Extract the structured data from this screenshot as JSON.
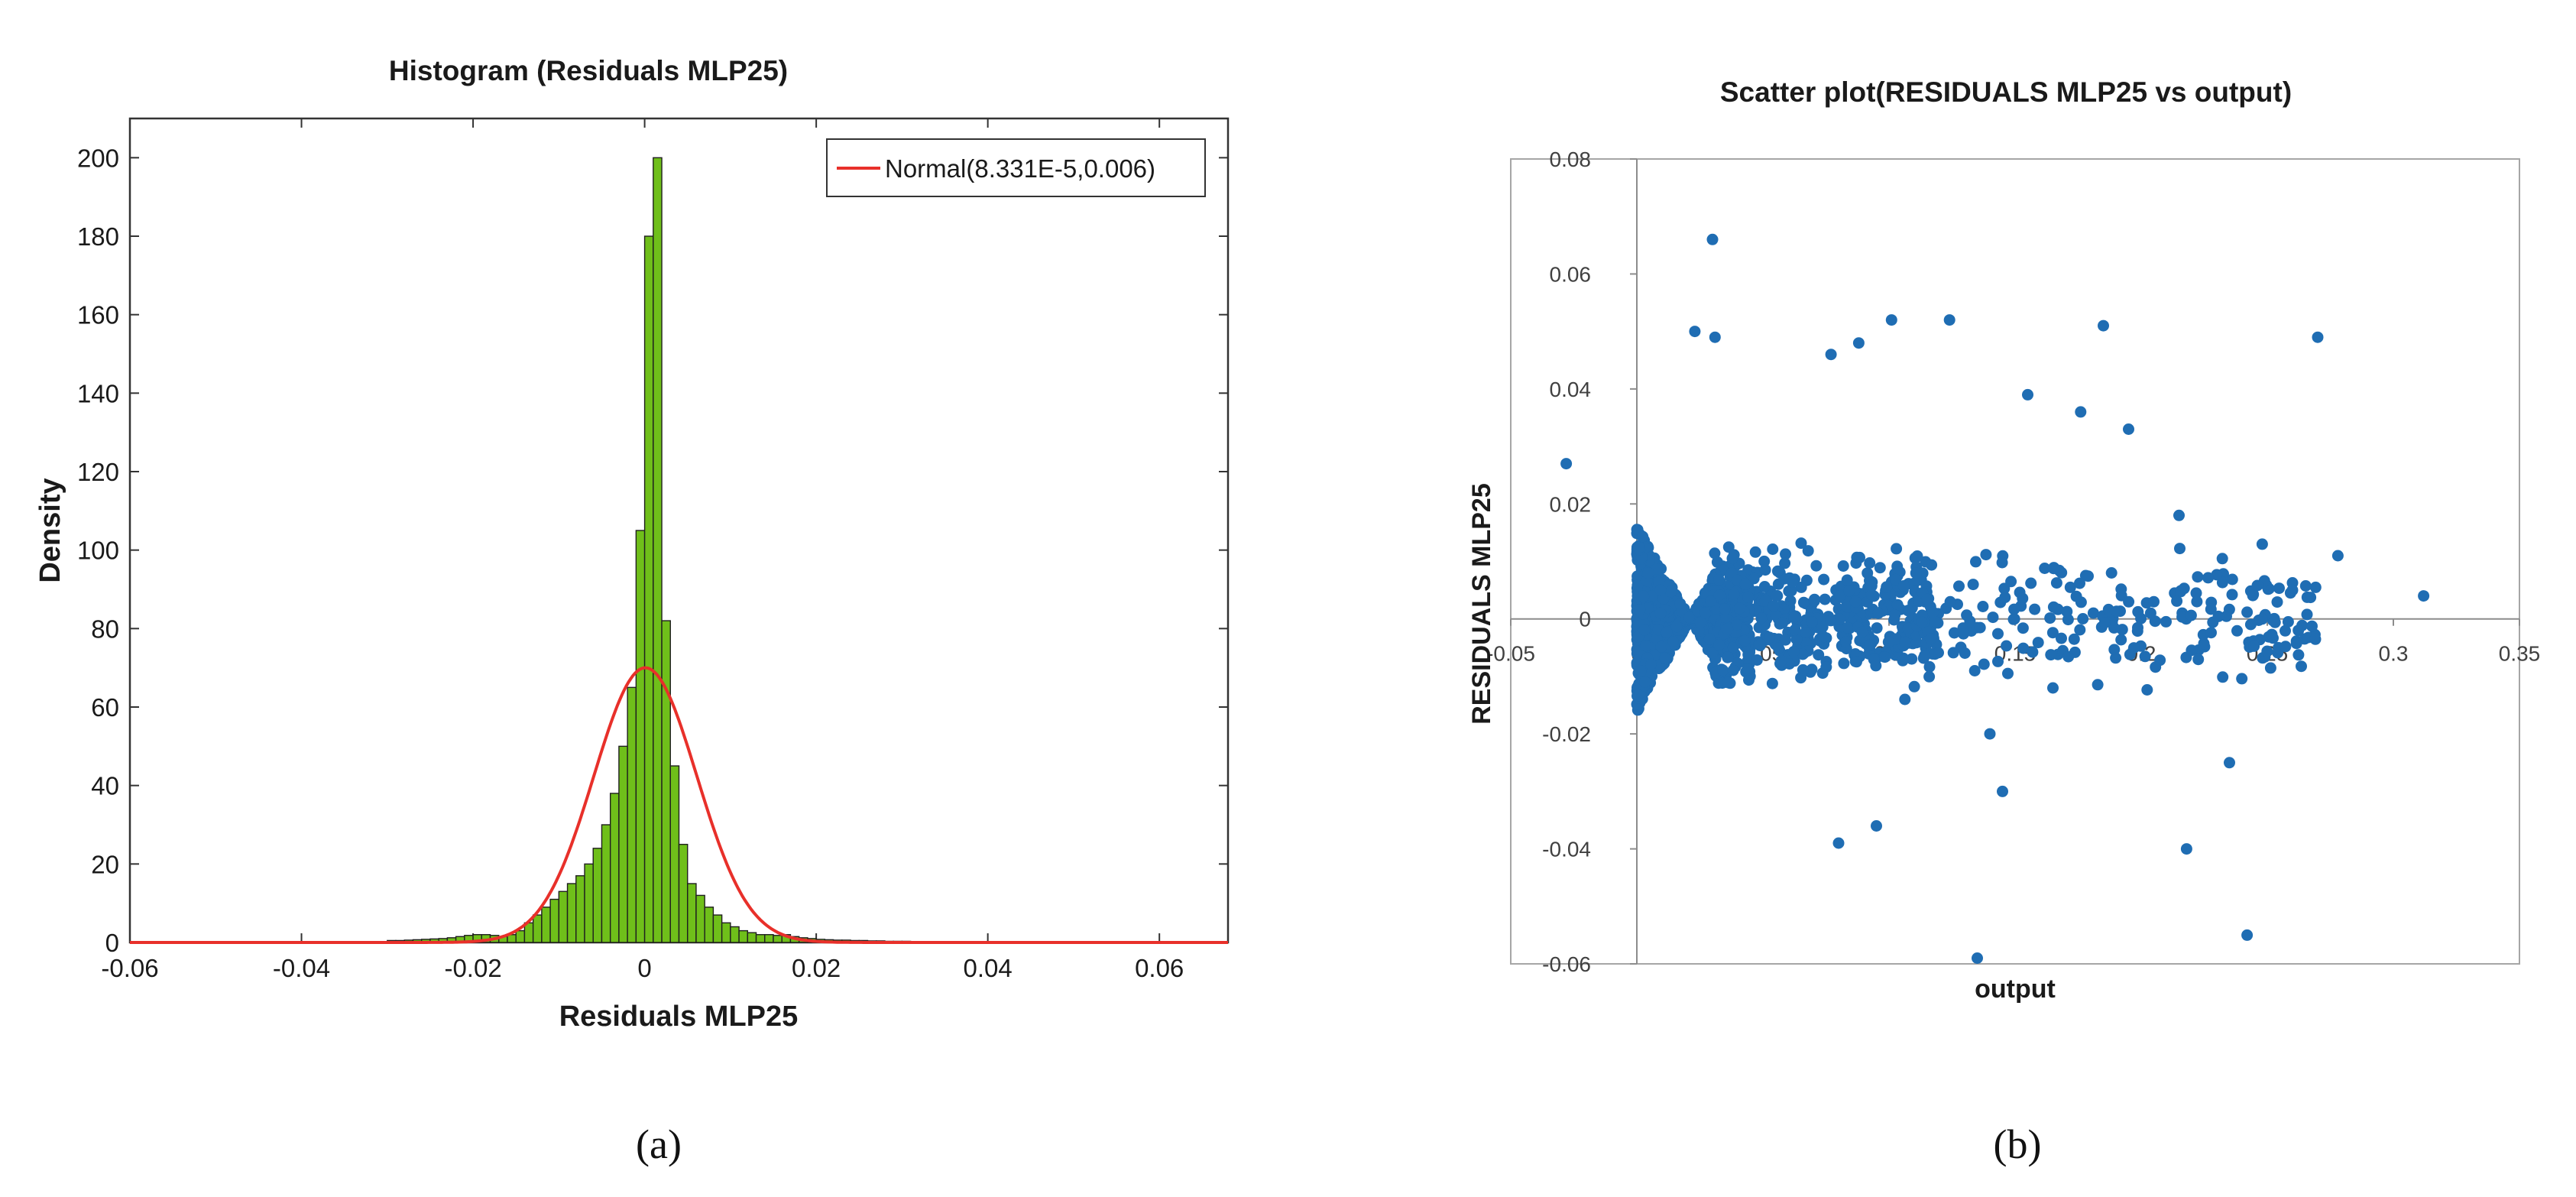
{
  "figure": {
    "panel_a_label": "(a)",
    "panel_b_label": "(b)"
  },
  "colors": {
    "bar_fill": "#6fbf1a",
    "bar_stroke": "#1f1f1f",
    "normal_curve": "#e8302a",
    "scatter_point": "#1f6db3",
    "axis": "#333333",
    "frame": "#a6a6a6"
  },
  "chart_data": [
    {
      "type": "bar",
      "title": "Histogram (Residuals MLP25)",
      "xlabel": "Residuals MLP25",
      "ylabel": "Density",
      "xlim": [
        -0.06,
        0.068
      ],
      "ylim": [
        0,
        210
      ],
      "xticks": [
        -0.06,
        -0.04,
        -0.02,
        0,
        0.02,
        0.04,
        0.06
      ],
      "xtick_labels": [
        "-0.06",
        "-0.04",
        "-0.02",
        "0",
        "0.02",
        "0.04",
        "0.06"
      ],
      "yticks": [
        0,
        20,
        40,
        60,
        80,
        100,
        120,
        140,
        160,
        180,
        200
      ],
      "ytick_labels": [
        "0",
        "20",
        "40",
        "60",
        "80",
        "100",
        "120",
        "140",
        "160",
        "180",
        "200"
      ],
      "legend": {
        "label": "Normal(8.331E-5,0.006)",
        "placement": "top-right"
      },
      "bins": {
        "start": -0.03,
        "width": 0.001,
        "density": [
          0.5,
          0.5,
          0.6,
          0.7,
          0.8,
          0.9,
          1,
          1.2,
          1.5,
          1.8,
          2,
          2,
          1.8,
          1.5,
          2,
          3,
          5,
          7,
          9,
          11,
          13,
          15,
          17,
          20,
          24,
          30,
          38,
          50,
          65,
          105,
          180,
          200,
          82,
          45,
          25,
          15,
          12,
          9,
          7,
          5,
          4,
          3,
          2.5,
          2,
          2,
          1.8,
          2,
          1.5,
          1.2,
          1,
          0.8,
          0.7,
          0.6,
          0.6,
          0.5,
          0.5,
          0.4,
          0.4,
          0.3,
          0.3,
          0.3,
          0.2,
          0.2,
          0.2,
          0.2,
          0.2,
          0.2,
          0.2,
          0.2,
          0.2
        ]
      },
      "normal_fit": {
        "mean": 8.331e-05,
        "std": 0.006,
        "peak_density": 70
      }
    },
    {
      "type": "scatter",
      "title": "Scatter plot(RESIDUALS MLP25 vs output)",
      "xlabel": "output",
      "ylabel": "RESIDUALS MLP25",
      "xlim": [
        -0.05,
        0.35
      ],
      "ylim": [
        -0.06,
        0.08
      ],
      "xticks": [
        -0.05,
        0,
        0.05,
        0.1,
        0.15,
        0.2,
        0.25,
        0.3,
        0.35
      ],
      "xtick_labels": [
        "-0.05",
        "0",
        "0.05",
        "0.1",
        "0.15",
        "0.2",
        "0.25",
        "0.3",
        "0.35"
      ],
      "yticks": [
        -0.06,
        -0.04,
        -0.02,
        0,
        0.02,
        0.04,
        0.06,
        0.08
      ],
      "ytick_labels": [
        "-0.06",
        "-0.04",
        "-0.02",
        "0",
        "0.02",
        "0.04",
        "0.06",
        "0.08"
      ],
      "notable_points": [
        [
          0.03,
          0.066
        ],
        [
          0.27,
          0.049
        ],
        [
          0.312,
          0.004
        ],
        [
          0.278,
          0.011
        ],
        [
          0.101,
          0.052
        ],
        [
          0.124,
          0.052
        ],
        [
          0.185,
          0.051
        ],
        [
          0.155,
          0.039
        ],
        [
          0.176,
          0.036
        ],
        [
          0.195,
          0.033
        ],
        [
          0.023,
          0.05
        ],
        [
          0.031,
          0.049
        ],
        [
          0.077,
          0.046
        ],
        [
          0.088,
          0.048
        ],
        [
          -0.028,
          0.027
        ],
        [
          0.135,
          -0.059
        ],
        [
          0.242,
          -0.055
        ],
        [
          0.218,
          -0.04
        ],
        [
          0.08,
          -0.039
        ],
        [
          0.095,
          -0.036
        ],
        [
          0.145,
          -0.03
        ],
        [
          0.235,
          -0.025
        ],
        [
          0.215,
          0.018
        ],
        [
          0.248,
          0.013
        ],
        [
          0.26,
          0.005
        ],
        [
          0.205,
          0.003
        ],
        [
          0.165,
          -0.012
        ],
        [
          0.14,
          -0.02
        ]
      ],
      "cluster_summary": {
        "n_generated": 1500,
        "seed": 7
      }
    }
  ]
}
